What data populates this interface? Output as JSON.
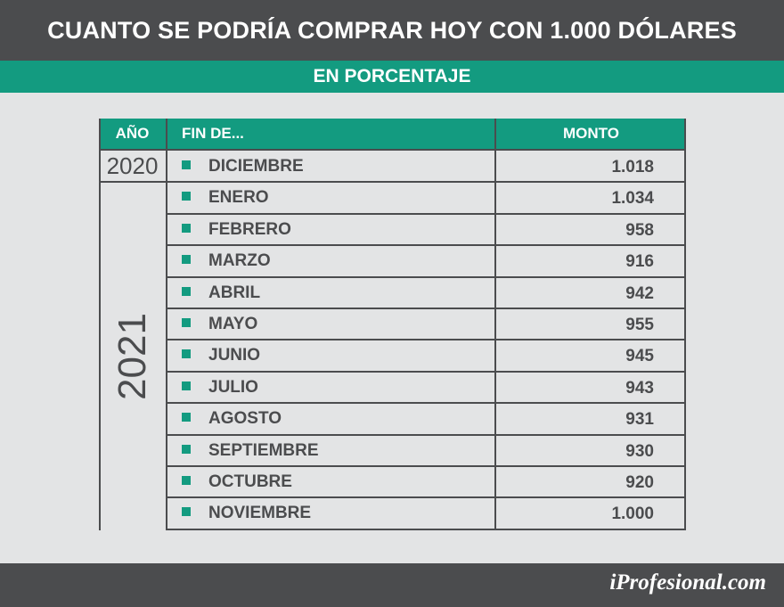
{
  "header": {
    "title": "CUANTO SE PODRÍA COMPRAR HOY CON 1.000 DÓLARES",
    "subtitle": "EN PORCENTAJE"
  },
  "table": {
    "columns": [
      "AÑO",
      "FIN DE...",
      "MONTO"
    ],
    "year_2020": "2020",
    "year_2021": "2021",
    "rows": [
      {
        "month": "DICIEMBRE",
        "amount": "1.018"
      },
      {
        "month": "ENERO",
        "amount": "1.034"
      },
      {
        "month": "FEBRERO",
        "amount": "958"
      },
      {
        "month": "MARZO",
        "amount": "916"
      },
      {
        "month": "ABRIL",
        "amount": "942"
      },
      {
        "month": "MAYO",
        "amount": "955"
      },
      {
        "month": "JUNIO",
        "amount": "945"
      },
      {
        "month": "JULIO",
        "amount": "943"
      },
      {
        "month": "AGOSTO",
        "amount": "931"
      },
      {
        "month": "SEPTIEMBRE",
        "amount": "930"
      },
      {
        "month": "OCTUBRE",
        "amount": "920"
      },
      {
        "month": "NOVIEMBRE",
        "amount": "1.000"
      }
    ]
  },
  "footer": {
    "logo": "iProfesional.com"
  },
  "colors": {
    "accent": "#139b80",
    "dark": "#4b4c4e",
    "background": "#e3e4e5"
  }
}
